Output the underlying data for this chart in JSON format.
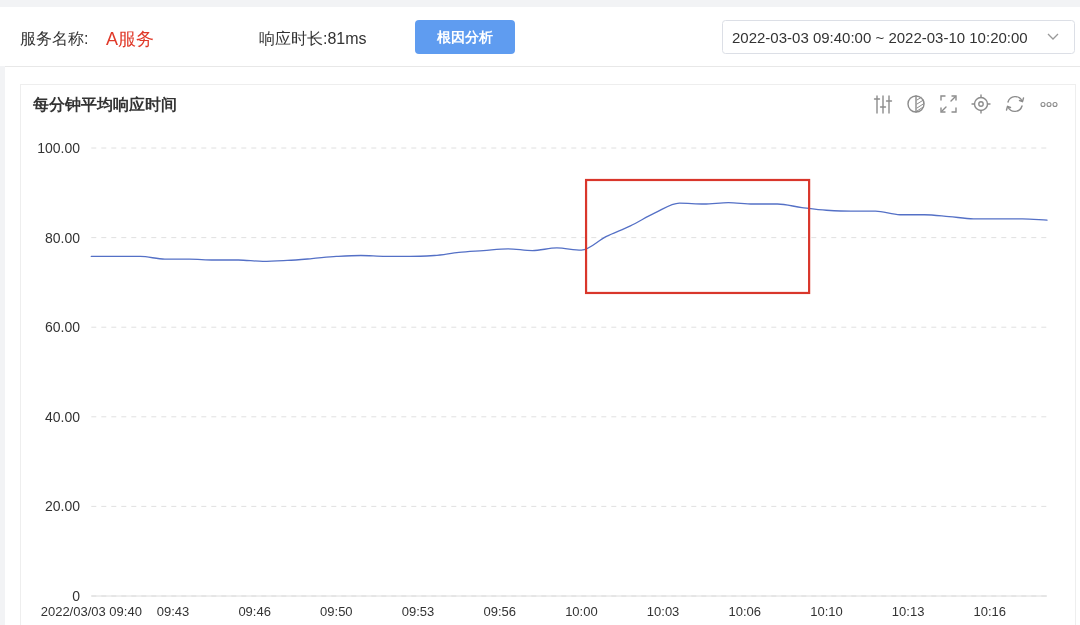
{
  "chart_data": {
    "type": "line",
    "title": "每分钟平均响应时间",
    "annotations": [
      "服务名称:",
      "A服务",
      "响应时长:81ms",
      "根因分析",
      "2022-03-03 09:40:00 ~ 2022-03-10 10:20:00"
    ],
    "x": [
      "2022-03-03T09:40",
      "2022-03-03T09:41",
      "2022-03-03T09:42",
      "2022-03-03T09:43",
      "2022-03-03T09:44",
      "2022-03-03T09:45",
      "2022-03-03T09:46",
      "2022-03-03T09:47",
      "2022-03-03T09:48",
      "2022-03-03T09:49",
      "2022-03-03T09:50",
      "2022-03-03T09:51",
      "2022-03-03T09:52",
      "2022-03-03T09:53",
      "2022-03-03T09:54",
      "2022-03-03T09:55",
      "2022-03-03T09:56",
      "2022-03-03T09:57",
      "2022-03-03T09:58",
      "2022-03-03T09:59",
      "2022-03-03T10:00",
      "2022-03-03T10:01",
      "2022-03-03T10:02",
      "2022-03-03T10:03",
      "2022-03-03T10:04",
      "2022-03-03T10:05",
      "2022-03-03T10:06",
      "2022-03-03T10:07",
      "2022-03-03T10:08",
      "2022-03-03T10:09",
      "2022-03-03T10:10",
      "2022-03-03T10:11",
      "2022-03-03T10:12",
      "2022-03-03T10:13",
      "2022-03-03T10:14",
      "2022-03-03T10:15",
      "2022-03-03T10:16",
      "2022-03-03T10:17",
      "2022-03-03T10:18",
      "2022-03-03T10:19"
    ],
    "series": [
      {
        "color": "#5470c6",
        "values": [
          75.8,
          75.8,
          75.8,
          75.2,
          75.2,
          75.0,
          75.0,
          74.7,
          74.9,
          75.3,
          75.8,
          76.0,
          75.8,
          75.8,
          76.0,
          76.7,
          77.1,
          77.5,
          77.1,
          77.7,
          77.2,
          80.2,
          82.6,
          85.5,
          87.7,
          87.5,
          87.8,
          87.5,
          87.5,
          86.7,
          86.1,
          85.9,
          85.9,
          85.1,
          85.1,
          84.7,
          84.2,
          84.2,
          84.2,
          83.9
        ]
      }
    ],
    "xlim": [
      "2022-03-03T09:40",
      "2022-03-03T10:19"
    ],
    "xticks": [
      {
        "value": "2022-03-03T09:40",
        "label": "2022/03/03 09:40"
      },
      {
        "value": "2022-03-03T09:43:20",
        "label": "09:43"
      },
      {
        "value": "2022-03-03T09:46:40",
        "label": "09:46"
      },
      {
        "value": "2022-03-03T09:50",
        "label": "09:50"
      },
      {
        "value": "2022-03-03T09:53:20",
        "label": "09:53"
      },
      {
        "value": "2022-03-03T09:56:40",
        "label": "09:56"
      },
      {
        "value": "2022-03-03T10:00",
        "label": "10:00"
      },
      {
        "value": "2022-03-03T10:03:20",
        "label": "10:03"
      },
      {
        "value": "2022-03-03T10:06:40",
        "label": "10:06"
      },
      {
        "value": "2022-03-03T10:10",
        "label": "10:10"
      },
      {
        "value": "2022-03-03T10:13:20",
        "label": "10:13"
      },
      {
        "value": "2022-03-03T10:16:40",
        "label": "10:16"
      }
    ],
    "ylim": [
      0,
      100
    ],
    "yticks": [
      0,
      {
        "value": 20,
        "label": "20.00"
      },
      {
        "value": 40,
        "label": "40.00"
      },
      {
        "value": 60,
        "label": "60.00"
      },
      {
        "value": 80,
        "label": "80.00"
      },
      {
        "value": 100,
        "label": "100.00"
      }
    ],
    "grid": "y"
  }
}
